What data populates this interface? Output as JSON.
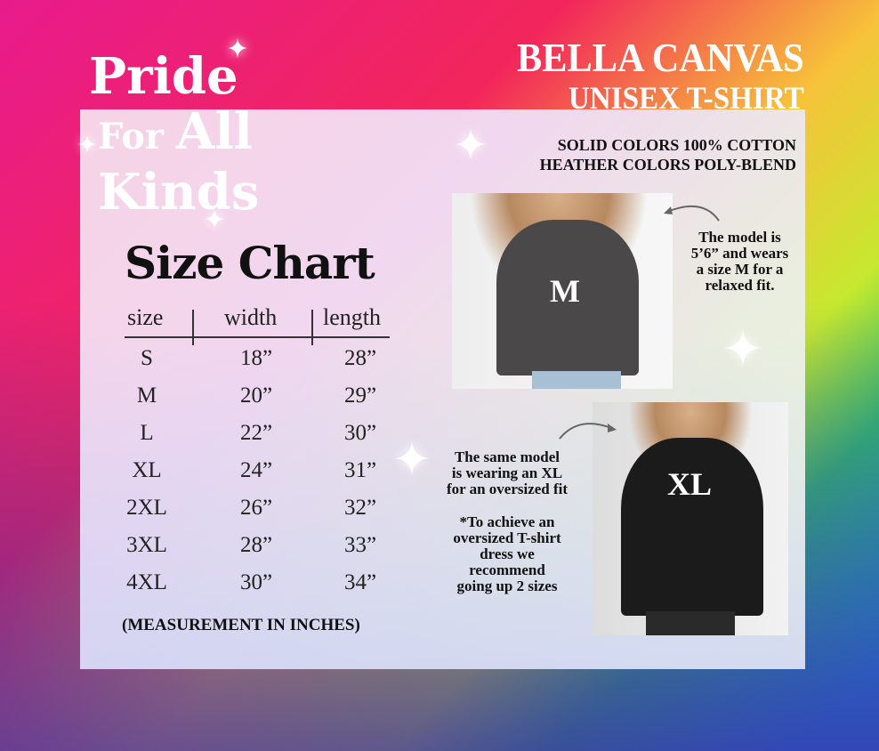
{
  "logo": {
    "line1": "Pride",
    "line2a": "For",
    "line2b": "All",
    "line3": "Kinds"
  },
  "brand": {
    "line1": "BELLA CANVAS",
    "line2": "UNISEX T-SHIRT"
  },
  "fabric": {
    "line1": "SOLID COLORS 100% COTTON",
    "line2": "HEATHER COLORS POLY-BLEND"
  },
  "size_chart": {
    "title": "Size Chart",
    "headers": [
      "size",
      "width",
      "length"
    ],
    "rows": [
      [
        "S",
        "18”",
        "28”"
      ],
      [
        "M",
        "20”",
        "29”"
      ],
      [
        "L",
        "22”",
        "30”"
      ],
      [
        "XL",
        "24”",
        "31”"
      ],
      [
        "2XL",
        "26”",
        "32”"
      ],
      [
        "3XL",
        "28”",
        "33”"
      ],
      [
        "4XL",
        "30”",
        "34”"
      ]
    ],
    "note": "(MEASUREMENT IN INCHES)"
  },
  "photos": {
    "m_label": "M",
    "xl_label": "XL"
  },
  "captions": {
    "model_m": [
      "The model is",
      "5’6” and wears",
      "a size M for a",
      "relaxed fit."
    ],
    "model_xl": [
      "The same model",
      "is wearing an XL",
      "for an oversized fit"
    ],
    "tip": [
      "*To achieve an",
      "oversized T-shirt",
      "dress we",
      "recommend",
      "going up 2 sizes"
    ]
  }
}
